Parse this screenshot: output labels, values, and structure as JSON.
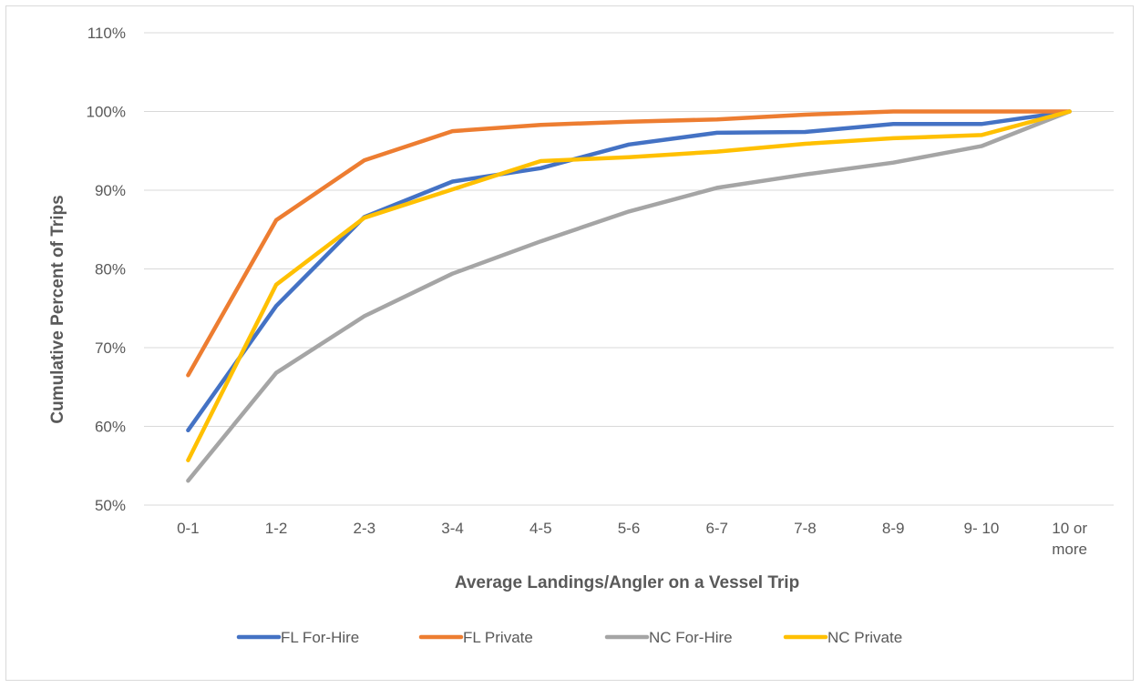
{
  "chart_data": {
    "type": "line",
    "title": "",
    "xlabel": "Average Landings/Angler on a Vessel Trip",
    "ylabel": "Cumulative Percent of Trips",
    "categories": [
      "0-1",
      "1-2",
      "2-3",
      "3-4",
      "4-5",
      "5-6",
      "6-7",
      "7-8",
      "8-9",
      "9- 10",
      "10 or more"
    ],
    "category_lines": [
      [
        "0-1"
      ],
      [
        "1-2"
      ],
      [
        "2-3"
      ],
      [
        "3-4"
      ],
      [
        "4-5"
      ],
      [
        "5-6"
      ],
      [
        "6-7"
      ],
      [
        "7-8"
      ],
      [
        "8-9"
      ],
      [
        "9- 10"
      ],
      [
        "10 or",
        "more"
      ]
    ],
    "ylim": [
      50,
      110
    ],
    "y_ticks": [
      50,
      60,
      70,
      80,
      90,
      100,
      110
    ],
    "y_tick_labels": [
      "50%",
      "60%",
      "70%",
      "80%",
      "90%",
      "100%",
      "110%"
    ],
    "grid": true,
    "legend_position": "bottom",
    "series": [
      {
        "name": "FL For-Hire",
        "color": "#4472C4",
        "values": [
          59.5,
          75.3,
          86.6,
          91.1,
          92.8,
          95.8,
          97.3,
          97.4,
          98.4,
          98.4,
          100
        ]
      },
      {
        "name": "FL Private",
        "color": "#ED7D31",
        "values": [
          66.5,
          86.2,
          93.8,
          97.5,
          98.3,
          98.7,
          99.0,
          99.6,
          100,
          100,
          100
        ]
      },
      {
        "name": "NC For-Hire",
        "color": "#A5A5A5",
        "values": [
          53.1,
          66.8,
          74.0,
          79.4,
          83.5,
          87.3,
          90.3,
          92.0,
          93.5,
          95.6,
          100
        ]
      },
      {
        "name": "NC Private",
        "color": "#FFC000",
        "values": [
          55.7,
          78.0,
          86.5,
          90.1,
          93.7,
          94.2,
          94.9,
          95.9,
          96.6,
          97.0,
          100
        ]
      }
    ]
  }
}
